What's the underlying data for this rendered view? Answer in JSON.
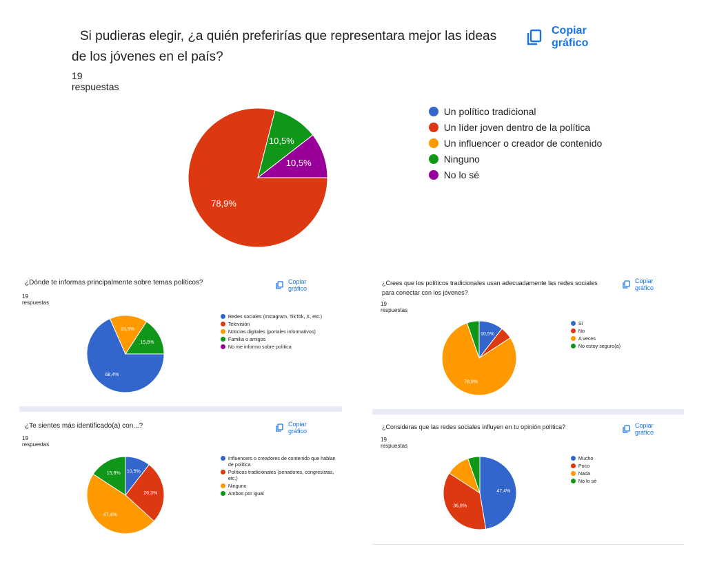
{
  "copy_label": "Copiar gráfico",
  "colors": {
    "blue": "#3366cc",
    "red": "#dc3912",
    "orange": "#ff9900",
    "green": "#109618",
    "purple": "#990099",
    "link": "#1a73e8"
  },
  "chart_data": [
    {
      "type": "pie",
      "title": "Si pudieras elegir, ¿a quién preferirías que representara mejor las ideas de los jóvenes en el país?",
      "responses": "19 respuestas",
      "categories": [
        "Un político tradicional",
        "Un líder joven dentro de la política",
        "Un influencer o creador de contenido",
        "Ninguno",
        "No lo sé"
      ],
      "values": [
        0,
        78.9,
        0,
        10.5,
        10.5
      ],
      "labels": [
        "",
        "78,9%",
        "",
        "10,5%",
        "10,5%"
      ],
      "legend_position": "right"
    },
    {
      "type": "pie",
      "title": "¿Dónde te informas principalmente sobre temas políticos?",
      "responses": "19 respuestas",
      "categories": [
        "Redes sociales (Instagram, TikTok, X, etc.)",
        "Televisión",
        "Noticias digitales (portales informativos)",
        "Familia o amigos",
        "No me informo sobre política"
      ],
      "values": [
        68.4,
        0,
        15.8,
        15.8,
        0
      ],
      "labels": [
        "68,4%",
        "",
        "15,8%",
        "15,8%",
        ""
      ],
      "legend_position": "right"
    },
    {
      "type": "pie",
      "title": "¿Crees que los políticos tradicionales usan adecuadamente las redes sociales para conectar con los jóvenes?",
      "responses": "19 respuestas",
      "categories": [
        "Sí",
        "No",
        "A veces",
        "No estoy seguro(a)"
      ],
      "values": [
        10.5,
        5.3,
        78.9,
        5.3
      ],
      "labels": [
        "10,5%",
        "",
        "78,9%",
        ""
      ],
      "legend_position": "right"
    },
    {
      "type": "pie",
      "title": "¿Te sientes más identificado(a) con...?",
      "responses": "19 respuestas",
      "categories": [
        "Influencers o creadores de contenido que hablan de política",
        "Políticos tradicionales (senadores, congresistas, etc.)",
        "Ninguno",
        "Ambos por igual"
      ],
      "values": [
        10.5,
        26.3,
        47.4,
        15.8
      ],
      "labels": [
        "10,5%",
        "26,3%",
        "47,4%",
        "15,8%"
      ],
      "legend_position": "right"
    },
    {
      "type": "pie",
      "title": "¿Consideras que las redes sociales influyen en tu opinión política?",
      "responses": "19 respuestas",
      "categories": [
        "Mucho",
        "Poco",
        "Nada",
        "No lo sé"
      ],
      "values": [
        47.4,
        36.8,
        10.5,
        5.3
      ],
      "labels": [
        "47,4%",
        "36,8%",
        "",
        ""
      ],
      "legend_position": "right"
    }
  ]
}
